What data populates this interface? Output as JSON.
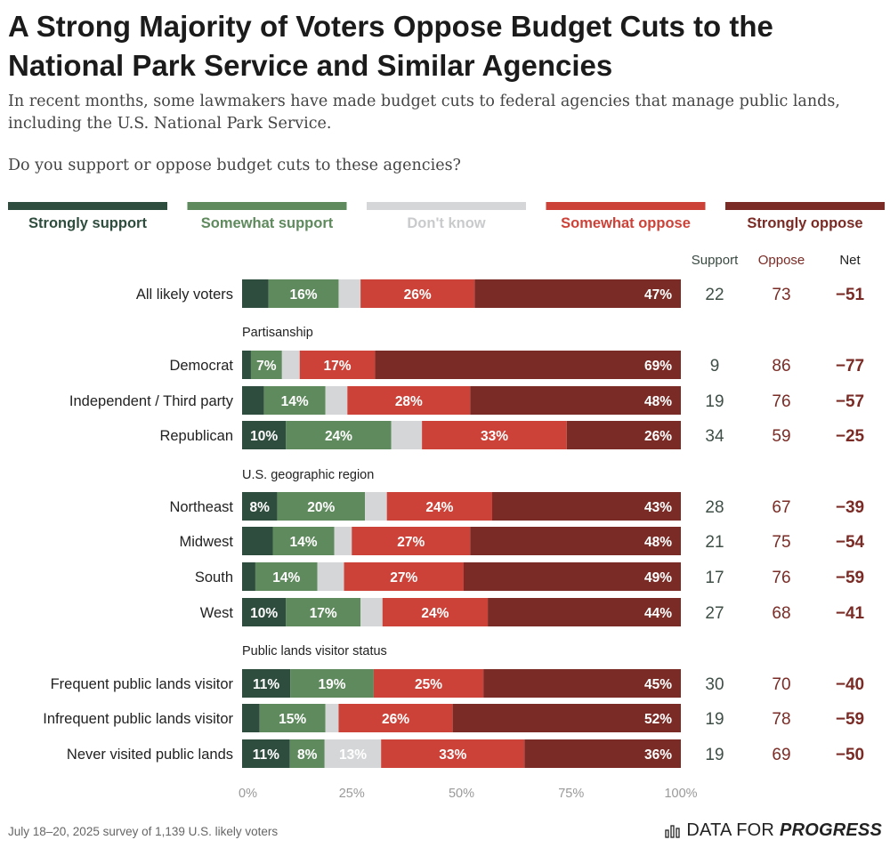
{
  "title": "A Strong Majority of Voters Oppose Budget Cuts to the National Park Service and Similar Agencies",
  "subtitle": "In recent months, some lawmakers have made budget cuts to federal agencies that manage public lands, including the U.S. National Park Service.",
  "question": "Do you support or oppose budget cuts to these agencies?",
  "footer": {
    "note": "July 18–20, 2025 survey of 1,139 U.S. likely voters",
    "brand_regular": "DATA FOR",
    "brand_bold": "PROGRESS"
  },
  "colors": {
    "strongly_support": "#2f4d3e",
    "somewhat_support": "#5f8a5d",
    "dont_know": "#d5d6d8",
    "somewhat_oppose": "#cc4238",
    "strongly_oppose": "#7a2b25",
    "support_text": "#3f4f47",
    "oppose_text": "#7a2b25",
    "net_text": "#7a2b25"
  },
  "chart_data": {
    "type": "bar",
    "orientation": "horizontal-stacked",
    "legend": [
      {
        "key": "strongly_support",
        "label": "Strongly support"
      },
      {
        "key": "somewhat_support",
        "label": "Somewhat support"
      },
      {
        "key": "dont_know",
        "label": "Don't know"
      },
      {
        "key": "somewhat_oppose",
        "label": "Somewhat oppose"
      },
      {
        "key": "strongly_oppose",
        "label": "Strongly oppose"
      }
    ],
    "legend_position": "top",
    "columns": {
      "support": "Support",
      "oppose": "Oppose",
      "net": "Net"
    },
    "xlim": [
      0,
      100
    ],
    "x_ticks": [
      "0%",
      "25%",
      "50%",
      "75%",
      "100%"
    ],
    "groups": [
      {
        "header": "",
        "rows": [
          {
            "label": "All likely voters",
            "values": [
              6,
              16,
              5,
              26,
              47
            ],
            "shown": [
              "",
              "16%",
              "",
              "26%",
              "47%"
            ],
            "support": "22",
            "oppose": "73",
            "net": "−51"
          }
        ]
      },
      {
        "header": "Partisanship",
        "rows": [
          {
            "label": "Democrat",
            "values": [
              2,
              7,
              4,
              17,
              69
            ],
            "shown": [
              "",
              "7%",
              "",
              "17%",
              "69%"
            ],
            "support": "9",
            "oppose": "86",
            "net": "−77"
          },
          {
            "label": "Independent / Third party",
            "values": [
              5,
              14,
              5,
              28,
              48
            ],
            "shown": [
              "",
              "14%",
              "",
              "28%",
              "48%"
            ],
            "support": "19",
            "oppose": "76",
            "net": "−57"
          },
          {
            "label": "Republican",
            "values": [
              10,
              24,
              7,
              33,
              26
            ],
            "shown": [
              "10%",
              "24%",
              "",
              "33%",
              "26%"
            ],
            "support": "34",
            "oppose": "59",
            "net": "−25"
          }
        ]
      },
      {
        "header": "U.S. geographic region",
        "rows": [
          {
            "label": "Northeast",
            "values": [
              8,
              20,
              5,
              24,
              43
            ],
            "shown": [
              "8%",
              "20%",
              "",
              "24%",
              "43%"
            ],
            "support": "28",
            "oppose": "67",
            "net": "−39"
          },
          {
            "label": "Midwest",
            "values": [
              7,
              14,
              4,
              27,
              48
            ],
            "shown": [
              "",
              "14%",
              "",
              "27%",
              "48%"
            ],
            "support": "21",
            "oppose": "75",
            "net": "−54"
          },
          {
            "label": "South",
            "values": [
              3,
              14,
              6,
              27,
              49
            ],
            "shown": [
              "",
              "14%",
              "",
              "27%",
              "49%"
            ],
            "support": "17",
            "oppose": "76",
            "net": "−59"
          },
          {
            "label": "West",
            "values": [
              10,
              17,
              5,
              24,
              44
            ],
            "shown": [
              "10%",
              "17%",
              "",
              "24%",
              "44%"
            ],
            "support": "27",
            "oppose": "68",
            "net": "−41"
          }
        ]
      },
      {
        "header": "Public lands visitor status",
        "rows": [
          {
            "label": "Frequent public lands visitor",
            "values": [
              11,
              19,
              0,
              25,
              45
            ],
            "shown": [
              "11%",
              "19%",
              "",
              "25%",
              "45%"
            ],
            "support": "30",
            "oppose": "70",
            "net": "−40"
          },
          {
            "label": "Infrequent public lands visitor",
            "values": [
              4,
              15,
              3,
              26,
              52
            ],
            "shown": [
              "",
              "15%",
              "",
              "26%",
              "52%"
            ],
            "support": "19",
            "oppose": "78",
            "net": "−59"
          },
          {
            "label": "Never visited public lands",
            "values": [
              11,
              8,
              13,
              33,
              36
            ],
            "shown": [
              "11%",
              "8%",
              "13%",
              "33%",
              "36%"
            ],
            "support": "19",
            "oppose": "69",
            "net": "−50"
          }
        ]
      }
    ]
  }
}
